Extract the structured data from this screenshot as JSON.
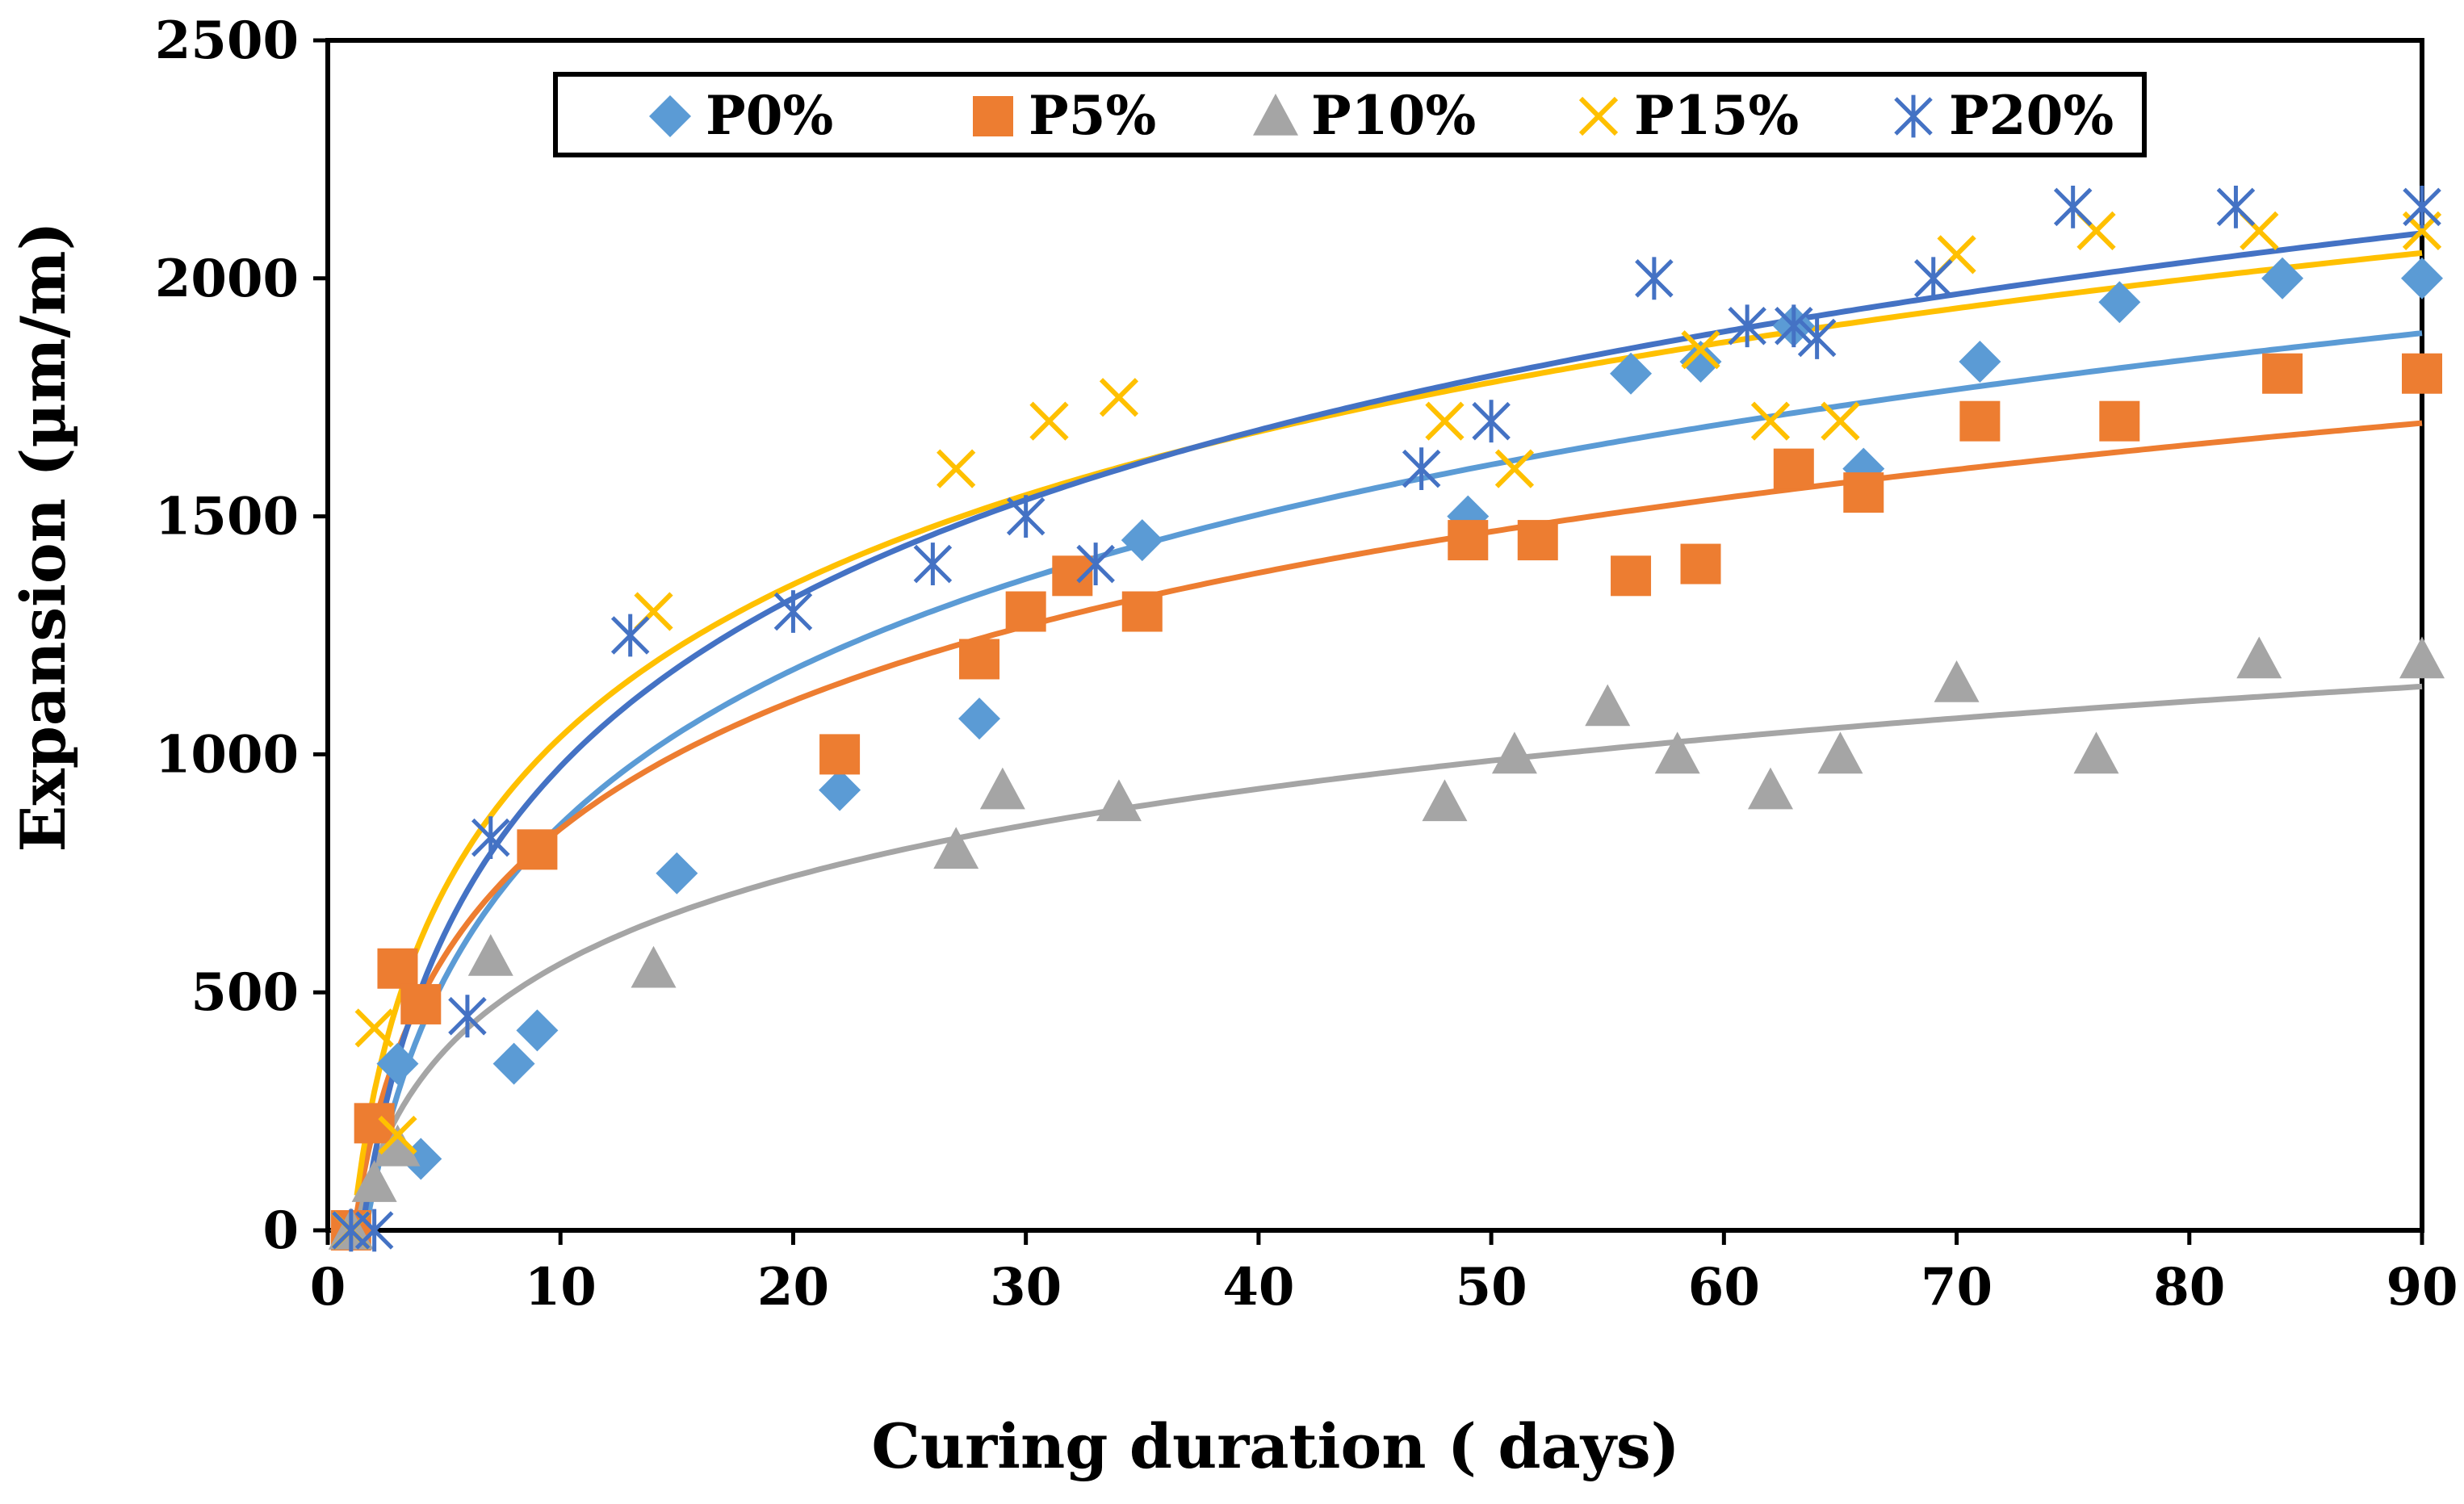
{
  "chart_data": {
    "type": "scatter",
    "title": "",
    "xlabel": "Curing duration ( days)",
    "ylabel": "Expansion (µm/m)",
    "xlim": [
      0,
      90
    ],
    "ylim": [
      0,
      2500
    ],
    "xticks": [
      0,
      10,
      20,
      30,
      40,
      50,
      60,
      70,
      80,
      90
    ],
    "yticks": [
      0,
      500,
      1000,
      1500,
      2000,
      2500
    ],
    "xtick_labels": [
      "0",
      "10",
      "20",
      "30",
      "40",
      "50",
      "60",
      "70",
      "80",
      "90"
    ],
    "ytick_labels": [
      "0",
      "500",
      "1000",
      "1500",
      "2000",
      "2500"
    ],
    "grid": false,
    "legend_position": "top",
    "series": [
      {
        "name": "P0%",
        "marker": "diamond",
        "color": "#5B9BD5",
        "x": [
          1,
          3,
          4,
          8,
          9,
          15,
          22,
          28,
          35,
          49,
          56,
          59,
          63,
          66,
          71,
          77,
          84,
          90
        ],
        "y": [
          0,
          350,
          150,
          350,
          420,
          750,
          925,
          1075,
          1450,
          1500,
          1800,
          1825,
          1900,
          1600,
          1825,
          1950,
          2000,
          2000
        ],
        "trendline": {
          "type": "log",
          "a": -230,
          "b": 470
        }
      },
      {
        "name": "P5%",
        "marker": "square",
        "color": "#ED7D31",
        "x": [
          1,
          2,
          3,
          4,
          9,
          22,
          28,
          30,
          32,
          35,
          49,
          52,
          56,
          59,
          63,
          66,
          71,
          77,
          84,
          90
        ],
        "y": [
          0,
          225,
          550,
          475,
          800,
          1000,
          1200,
          1300,
          1375,
          1300,
          1450,
          1450,
          1375,
          1400,
          1600,
          1550,
          1700,
          1700,
          1800,
          1800
        ],
        "trendline": {
          "type": "log",
          "a": -50,
          "b": 388
        }
      },
      {
        "name": "P10%",
        "marker": "triangle",
        "color": "#A5A5A5",
        "x": [
          1,
          2,
          3,
          7,
          14,
          27,
          29,
          34,
          48,
          51,
          55,
          58,
          62,
          65,
          70,
          76,
          83,
          90
        ],
        "y": [
          0,
          100,
          175,
          575,
          550,
          800,
          925,
          900,
          900,
          1000,
          1100,
          1000,
          925,
          1000,
          1150,
          1000,
          1200,
          1200
        ],
        "trendline": {
          "type": "log",
          "a": -50,
          "b": 265
        }
      },
      {
        "name": "P15%",
        "marker": "x",
        "color": "#FFC000",
        "x": [
          1,
          2,
          3,
          14,
          27,
          31,
          34,
          48,
          51,
          59,
          62,
          65,
          70,
          76,
          83,
          90
        ],
        "y": [
          0,
          425,
          200,
          1300,
          1600,
          1700,
          1750,
          1700,
          1600,
          1850,
          1700,
          1700,
          2050,
          2100,
          2100,
          2100
        ],
        "trendline": {
          "type": "log",
          "a": -30,
          "b": 463
        }
      },
      {
        "name": "P20%",
        "marker": "star",
        "color": "#4472C4",
        "x": [
          1,
          2,
          6,
          7,
          13,
          20,
          26,
          30,
          33,
          47,
          50,
          57,
          61,
          63,
          64,
          69,
          75,
          82,
          90
        ],
        "y": [
          0,
          0,
          450,
          825,
          1250,
          1300,
          1400,
          1500,
          1400,
          1600,
          1700,
          2000,
          1900,
          1900,
          1875,
          2000,
          2150,
          2150,
          2150
        ],
        "trendline": {
          "type": "log",
          "a": -200,
          "b": 510
        }
      }
    ]
  }
}
